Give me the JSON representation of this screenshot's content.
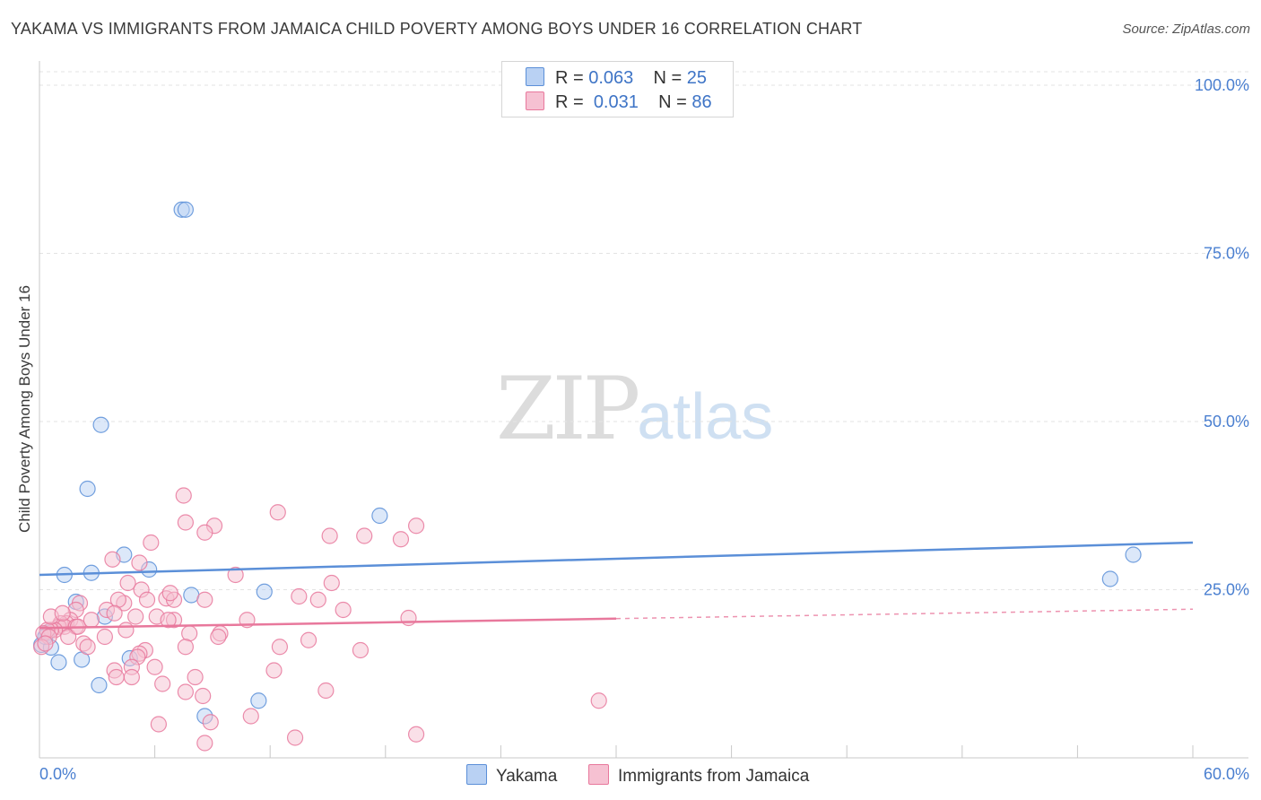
{
  "chart_data": {
    "type": "scatter",
    "title": "YAKAMA VS IMMIGRANTS FROM JAMAICA CHILD POVERTY AMONG BOYS UNDER 16 CORRELATION CHART",
    "source": "Source: ZipAtlas.com",
    "xlabel": "",
    "ylabel": "Child Poverty Among Boys Under 16",
    "xlim": [
      0,
      60
    ],
    "ylim": [
      0,
      102
    ],
    "x_tick_labels": [
      "0.0%",
      "60.0%"
    ],
    "y_ticks": [
      25,
      50,
      75,
      100
    ],
    "y_tick_labels": [
      "25.0%",
      "50.0%",
      "75.0%",
      "100.0%"
    ],
    "grid": true,
    "watermark": {
      "zip": "ZIP",
      "atlas": "atlas"
    },
    "legend": {
      "r_label": "R =",
      "n_label": "N =",
      "entries": [
        {
          "name": "Yakama",
          "r": "0.063",
          "n": "25"
        },
        {
          "name": "Immigrants from Jamaica",
          "r": "0.031",
          "n": "86"
        }
      ]
    },
    "series": [
      {
        "name": "Yakama",
        "color": "#5b8fd8",
        "fill": "#b9d1f3",
        "trend": {
          "x": [
            0,
            60
          ],
          "y": [
            27.2,
            32.0
          ]
        },
        "points": [
          [
            7.4,
            81.5
          ],
          [
            7.6,
            81.5
          ],
          [
            3.2,
            49.5
          ],
          [
            2.5,
            40.0
          ],
          [
            17.7,
            36.0
          ],
          [
            56.9,
            30.2
          ],
          [
            55.7,
            26.6
          ],
          [
            4.4,
            30.2
          ],
          [
            5.7,
            28.0
          ],
          [
            1.3,
            27.2
          ],
          [
            2.7,
            27.5
          ],
          [
            11.7,
            24.7
          ],
          [
            7.9,
            24.2
          ],
          [
            1.9,
            23.2
          ],
          [
            3.4,
            21.0
          ],
          [
            0.4,
            18.6
          ],
          [
            0.1,
            16.8
          ],
          [
            0.6,
            16.4
          ],
          [
            1.0,
            14.2
          ],
          [
            2.2,
            14.6
          ],
          [
            4.7,
            14.8
          ],
          [
            3.1,
            10.8
          ],
          [
            11.4,
            8.5
          ],
          [
            8.6,
            6.2
          ],
          [
            0.3,
            18.0
          ]
        ]
      },
      {
        "name": "Immigrants from Jamaica",
        "color": "#e8789c",
        "fill": "#f6c1d2",
        "trend": {
          "x": [
            0,
            30
          ],
          "y": [
            19.3,
            20.7
          ]
        },
        "trend_dashed": {
          "x": [
            30,
            60
          ],
          "y": [
            20.7,
            22.1
          ]
        },
        "points": [
          [
            7.5,
            39.0
          ],
          [
            12.4,
            36.5
          ],
          [
            19.6,
            34.5
          ],
          [
            9.1,
            34.5
          ],
          [
            7.6,
            35.0
          ],
          [
            8.6,
            33.5
          ],
          [
            15.1,
            33.0
          ],
          [
            16.9,
            33.0
          ],
          [
            18.8,
            32.5
          ],
          [
            5.8,
            32.0
          ],
          [
            5.2,
            29.0
          ],
          [
            3.8,
            29.5
          ],
          [
            10.2,
            27.2
          ],
          [
            15.2,
            26.0
          ],
          [
            4.6,
            26.0
          ],
          [
            5.3,
            25.0
          ],
          [
            13.5,
            24.0
          ],
          [
            14.5,
            23.5
          ],
          [
            8.6,
            23.5
          ],
          [
            6.6,
            23.7
          ],
          [
            7.0,
            23.5
          ],
          [
            5.6,
            23.5
          ],
          [
            4.4,
            23.0
          ],
          [
            4.1,
            23.5
          ],
          [
            2.1,
            23.0
          ],
          [
            1.9,
            22.0
          ],
          [
            3.5,
            22.0
          ],
          [
            3.9,
            21.5
          ],
          [
            5.0,
            21.0
          ],
          [
            6.1,
            21.0
          ],
          [
            7.0,
            20.5
          ],
          [
            6.7,
            20.5
          ],
          [
            10.8,
            20.5
          ],
          [
            15.8,
            22.0
          ],
          [
            19.2,
            20.8
          ],
          [
            1.6,
            20.5
          ],
          [
            1.4,
            20.0
          ],
          [
            1.1,
            20.0
          ],
          [
            1.0,
            19.5
          ],
          [
            1.3,
            19.5
          ],
          [
            1.9,
            19.5
          ],
          [
            0.8,
            19.0
          ],
          [
            0.6,
            19.0
          ],
          [
            0.4,
            19.0
          ],
          [
            0.2,
            18.5
          ],
          [
            0.5,
            18.0
          ],
          [
            1.5,
            18.0
          ],
          [
            3.4,
            18.0
          ],
          [
            7.8,
            18.5
          ],
          [
            9.4,
            18.5
          ],
          [
            9.3,
            18.0
          ],
          [
            0.6,
            21.0
          ],
          [
            2.3,
            17.0
          ],
          [
            2.5,
            16.5
          ],
          [
            5.5,
            16.0
          ],
          [
            7.6,
            16.5
          ],
          [
            12.5,
            16.5
          ],
          [
            14.0,
            17.5
          ],
          [
            16.7,
            16.0
          ],
          [
            5.2,
            15.5
          ],
          [
            5.1,
            15.0
          ],
          [
            3.9,
            13.0
          ],
          [
            4.8,
            13.5
          ],
          [
            6.0,
            13.5
          ],
          [
            12.2,
            13.0
          ],
          [
            8.1,
            12.0
          ],
          [
            4.8,
            12.0
          ],
          [
            4.0,
            12.0
          ],
          [
            6.4,
            11.0
          ],
          [
            7.6,
            9.8
          ],
          [
            8.5,
            9.2
          ],
          [
            14.9,
            10.0
          ],
          [
            29.1,
            8.5
          ],
          [
            11.0,
            6.2
          ],
          [
            8.9,
            5.3
          ],
          [
            6.2,
            5.0
          ],
          [
            13.3,
            3.0
          ],
          [
            19.6,
            3.5
          ],
          [
            8.6,
            2.2
          ],
          [
            0.1,
            16.5
          ],
          [
            0.3,
            17.0
          ],
          [
            2.0,
            19.5
          ],
          [
            2.7,
            20.5
          ],
          [
            1.2,
            21.5
          ],
          [
            4.5,
            19.0
          ],
          [
            6.8,
            24.5
          ]
        ]
      }
    ]
  }
}
